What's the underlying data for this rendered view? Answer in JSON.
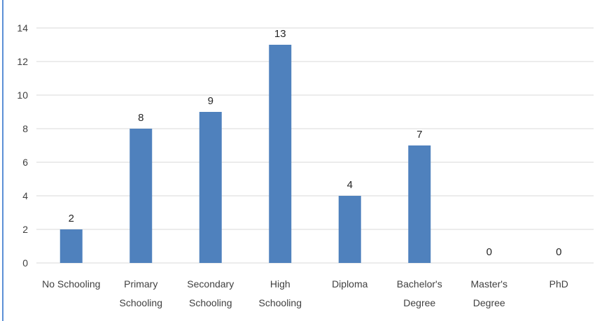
{
  "chart_data": {
    "type": "bar",
    "categories": [
      [
        "No Schooling"
      ],
      [
        "Primary",
        "Schooling"
      ],
      [
        "Secondary",
        "Schooling"
      ],
      [
        "High",
        "Schooling"
      ],
      [
        "Diploma"
      ],
      [
        "Bachelor's",
        "Degree"
      ],
      [
        "Master's",
        "Degree"
      ],
      [
        "PhD"
      ]
    ],
    "values": [
      2,
      8,
      9,
      13,
      4,
      7,
      0,
      0
    ],
    "data_labels": [
      "2",
      "8",
      "9",
      "13",
      "4",
      "7",
      "0",
      "0"
    ],
    "ylim": [
      0,
      14
    ],
    "yticks": [
      0,
      2,
      4,
      6,
      8,
      10,
      12,
      14
    ],
    "grid": true,
    "bar_color": "#4f81bd",
    "grid_color": "#d9d9d9"
  }
}
